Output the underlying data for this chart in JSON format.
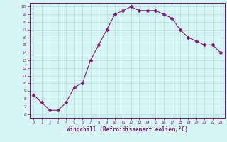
{
  "x": [
    0,
    1,
    2,
    3,
    4,
    5,
    6,
    7,
    8,
    9,
    10,
    11,
    12,
    13,
    14,
    15,
    16,
    17,
    18,
    19,
    20,
    21,
    22,
    23
  ],
  "y": [
    8.5,
    7.5,
    6.5,
    6.5,
    7.5,
    9.5,
    10.0,
    13.0,
    15.0,
    17.0,
    19.0,
    19.5,
    20.0,
    19.5,
    19.5,
    19.5,
    19.0,
    18.5,
    17.0,
    16.0,
    15.5,
    15.0,
    15.0,
    14.0
  ],
  "line_color": "#7B1B7B",
  "marker": "D",
  "marker_size": 2.5,
  "bg_color": "#d8f5f5",
  "grid_color": "#b0dede",
  "xlabel": "Windchill (Refroidissement éolien,°C)",
  "xlabel_color": "#7B1B7B",
  "xlim": [
    -0.5,
    23.5
  ],
  "ylim": [
    5.5,
    20.5
  ],
  "yticks": [
    6,
    7,
    8,
    9,
    10,
    11,
    12,
    13,
    14,
    15,
    16,
    17,
    18,
    19,
    20
  ],
  "xticks": [
    0,
    1,
    2,
    3,
    4,
    5,
    6,
    7,
    8,
    9,
    10,
    11,
    12,
    13,
    14,
    15,
    16,
    17,
    18,
    19,
    20,
    21,
    22,
    23
  ],
  "tick_color": "#7B1B7B",
  "spine_color": "#7B1B7B",
  "bottom_bar_color": "#7B1B7B"
}
